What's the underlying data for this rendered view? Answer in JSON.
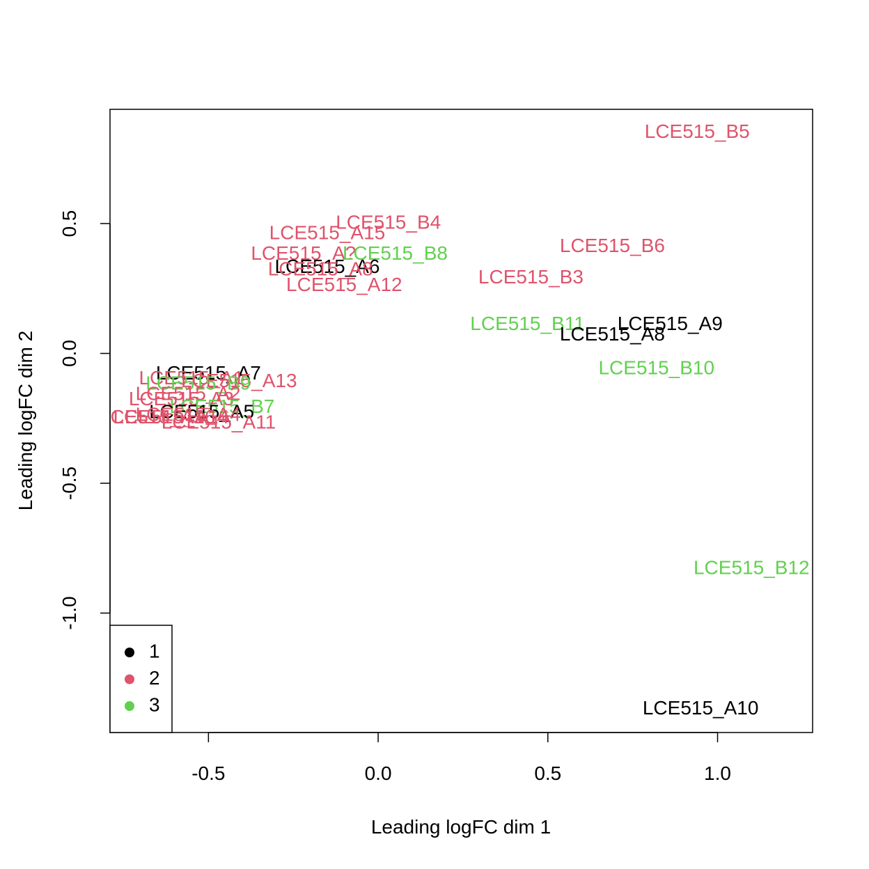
{
  "chart_data": {
    "type": "scatter",
    "title": "",
    "xlabel": "Leading logFC dim 1",
    "ylabel": "Leading logFC dim 2",
    "xlim": [
      -0.79,
      1.28
    ],
    "ylim": [
      -1.46,
      0.94
    ],
    "xticks": [
      {
        "value": -0.5,
        "label": "-0.5"
      },
      {
        "value": 0.0,
        "label": "0.0"
      },
      {
        "value": 0.5,
        "label": "0.5"
      },
      {
        "value": 1.0,
        "label": "1.0"
      }
    ],
    "yticks": [
      {
        "value": 0.5,
        "label": "0.5"
      },
      {
        "value": 0.0,
        "label": "0.0"
      },
      {
        "value": -0.5,
        "label": "-0.5"
      },
      {
        "value": -1.0,
        "label": "-1.0"
      }
    ],
    "groups": [
      {
        "name": "1",
        "color": "#000000"
      },
      {
        "name": "2",
        "color": "#DF536B"
      },
      {
        "name": "3",
        "color": "#61D04F"
      }
    ],
    "legend": {
      "position": "bottom-left",
      "entries": [
        "1",
        "2",
        "3"
      ]
    },
    "points": [
      {
        "label": "LCE515_B5",
        "x": 0.94,
        "y": 0.85,
        "group": "2"
      },
      {
        "label": "LCE515_B4",
        "x": 0.03,
        "y": 0.5,
        "group": "2"
      },
      {
        "label": "LCE515_A15",
        "x": -0.15,
        "y": 0.46,
        "group": "2"
      },
      {
        "label": "LCE515_B6",
        "x": 0.69,
        "y": 0.41,
        "group": "2"
      },
      {
        "label": "LCE515_A?",
        "x": -0.22,
        "y": 0.38,
        "group": "2"
      },
      {
        "label": "LCE515_B8",
        "x": 0.05,
        "y": 0.38,
        "group": "3"
      },
      {
        "label": "LCE515_A6",
        "x": -0.15,
        "y": 0.33,
        "group": "1"
      },
      {
        "label": "LCE515_A8",
        "x": -0.17,
        "y": 0.32,
        "group": "2"
      },
      {
        "label": "LCE515_B3",
        "x": 0.45,
        "y": 0.29,
        "group": "2"
      },
      {
        "label": "LCE515_A12",
        "x": -0.1,
        "y": 0.26,
        "group": "2"
      },
      {
        "label": "LCE515_B11",
        "x": 0.44,
        "y": 0.11,
        "group": "3"
      },
      {
        "label": "LCE515_A9",
        "x": 0.86,
        "y": 0.11,
        "group": "1"
      },
      {
        "label": "LCE515_A8",
        "x": 0.69,
        "y": 0.07,
        "group": "1"
      },
      {
        "label": "LCE515_B10",
        "x": 0.82,
        "y": -0.06,
        "group": "3"
      },
      {
        "label": "LCE515_A7",
        "x": -0.5,
        "y": -0.08,
        "group": "1"
      },
      {
        "label": "LCE515_A13",
        "x": -0.41,
        "y": -0.11,
        "group": "2"
      },
      {
        "label": "LCE515_A1",
        "x": -0.55,
        "y": -0.1,
        "group": "2"
      },
      {
        "label": "LCE515_B9",
        "x": -0.53,
        "y": -0.12,
        "group": "3"
      },
      {
        "label": "LCE515_A2",
        "x": -0.56,
        "y": -0.16,
        "group": "2"
      },
      {
        "label": "LCE515_A3",
        "x": -0.58,
        "y": -0.18,
        "group": "2"
      },
      {
        "label": "LCE515_B7",
        "x": -0.46,
        "y": -0.21,
        "group": "3"
      },
      {
        "label": "LCE515_A5",
        "x": -0.52,
        "y": -0.23,
        "group": "1"
      },
      {
        "label": "LCE515_A4",
        "x": -0.56,
        "y": -0.24,
        "group": "2"
      },
      {
        "label": "LCE515_A14",
        "x": -0.61,
        "y": -0.25,
        "group": "2"
      },
      {
        "label": "LCE515_A16",
        "x": -0.65,
        "y": -0.25,
        "group": "2"
      },
      {
        "label": "LCE515_A11",
        "x": -0.47,
        "y": -0.27,
        "group": "2"
      },
      {
        "label": "LCE515_B12",
        "x": 1.1,
        "y": -0.83,
        "group": "3"
      },
      {
        "label": "LCE515_A10",
        "x": 0.95,
        "y": -1.37,
        "group": "1"
      }
    ]
  }
}
